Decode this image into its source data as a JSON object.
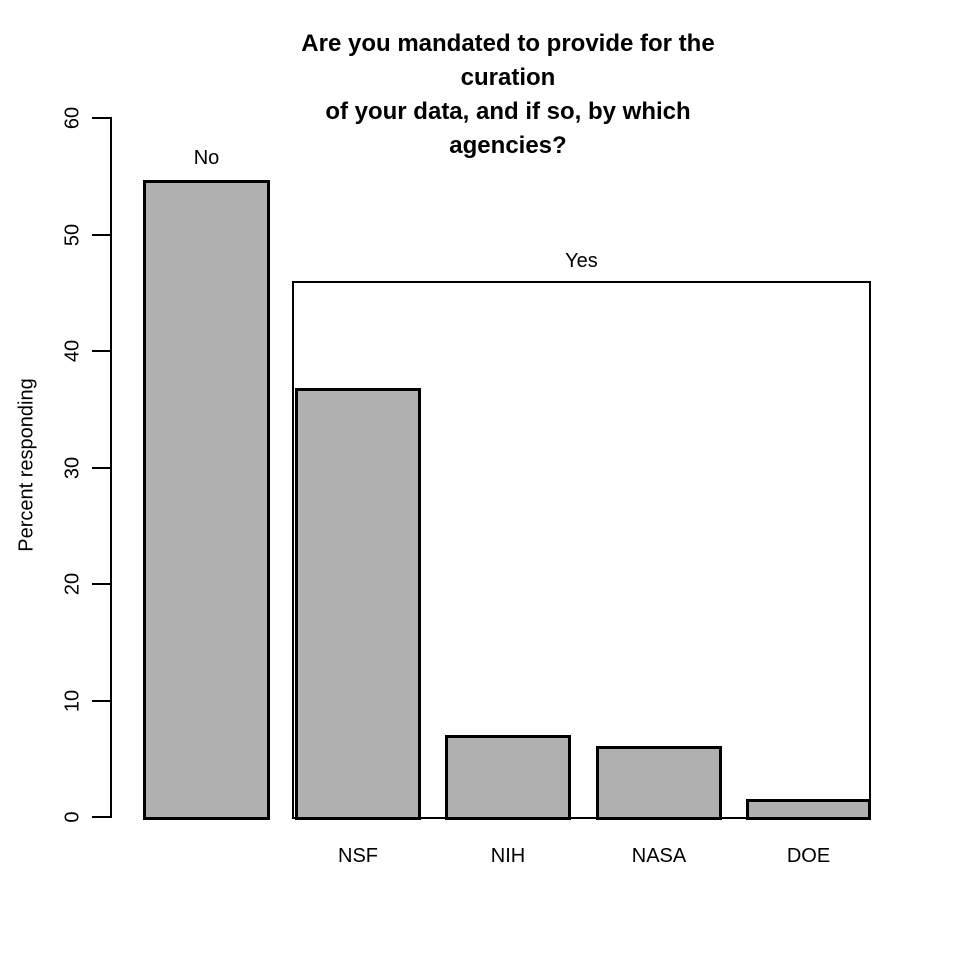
{
  "chart_data": {
    "type": "bar",
    "title": "Are you mandated to provide for the curation\nof your data, and if so, by which agencies?",
    "xlabel": "",
    "ylabel": "Percent responding",
    "ylim": [
      0,
      60
    ],
    "yticks": [
      0,
      10,
      20,
      30,
      40,
      50,
      60
    ],
    "grid": false,
    "legend": "none",
    "bar_fill_color": "#b0b0b0",
    "bar_border_color": "#000000",
    "background_color": "#ffffff",
    "bars": [
      {
        "category": "No",
        "value": 54.4,
        "label": "No",
        "label_position": "above"
      },
      {
        "category": "NSF",
        "value": 36.6,
        "label": "NSF",
        "label_position": "below"
      },
      {
        "category": "NIH",
        "value": 6.8,
        "label": "NIH",
        "label_position": "below"
      },
      {
        "category": "NASA",
        "value": 5.8,
        "label": "NASA",
        "label_position": "below"
      },
      {
        "category": "DOE",
        "value": 1.3,
        "label": "DOE",
        "label_position": "below"
      }
    ],
    "group_box": {
      "label": "Yes",
      "value": 45.8,
      "spans": [
        "NSF",
        "NIH",
        "NASA",
        "DOE"
      ]
    }
  }
}
